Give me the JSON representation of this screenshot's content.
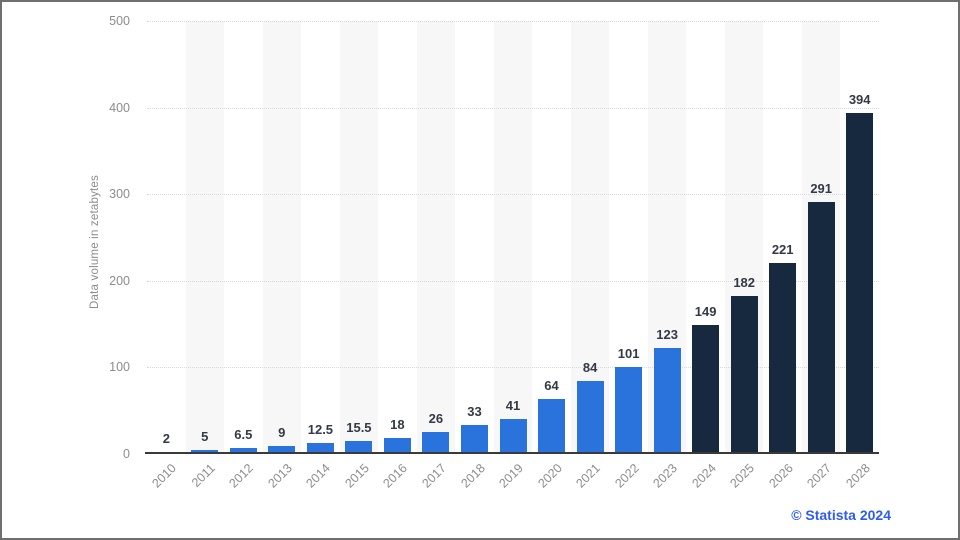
{
  "chart_data": {
    "type": "bar",
    "title": "",
    "xlabel": "",
    "ylabel": "Data volume in zetabytes",
    "ylim": [
      0,
      500
    ],
    "yticks": [
      0,
      100,
      200,
      300,
      400,
      500
    ],
    "grid": "horizontal-dotted",
    "legend_position": "none",
    "categories": [
      "2010",
      "2011",
      "2012",
      "2013",
      "2014",
      "2015",
      "2016",
      "2017",
      "2018",
      "2019",
      "2020",
      "2021",
      "2022",
      "2023",
      "2024",
      "2025",
      "2026",
      "2027",
      "2028"
    ],
    "values": [
      2,
      5,
      6.5,
      9,
      12.5,
      15.5,
      18,
      26,
      33,
      41,
      64,
      84,
      101,
      123,
      149,
      182,
      221,
      291,
      394
    ],
    "dark_bars_start_index": 14,
    "colors": {
      "actual_bar": "#2a72dc",
      "dark_bar": "#16293f",
      "value_label": "#333a44",
      "axis_text": "#8c8c8c",
      "gridline": "#d9d9d9",
      "stripe": "#f7f7f7",
      "axis_line": "#3a3a3a"
    }
  },
  "footer": {
    "credit": "© Statista 2024",
    "credit_color": "#2e5cf0"
  },
  "frame": {
    "border_color": "#6f6f6f",
    "background": "#ffffff"
  }
}
